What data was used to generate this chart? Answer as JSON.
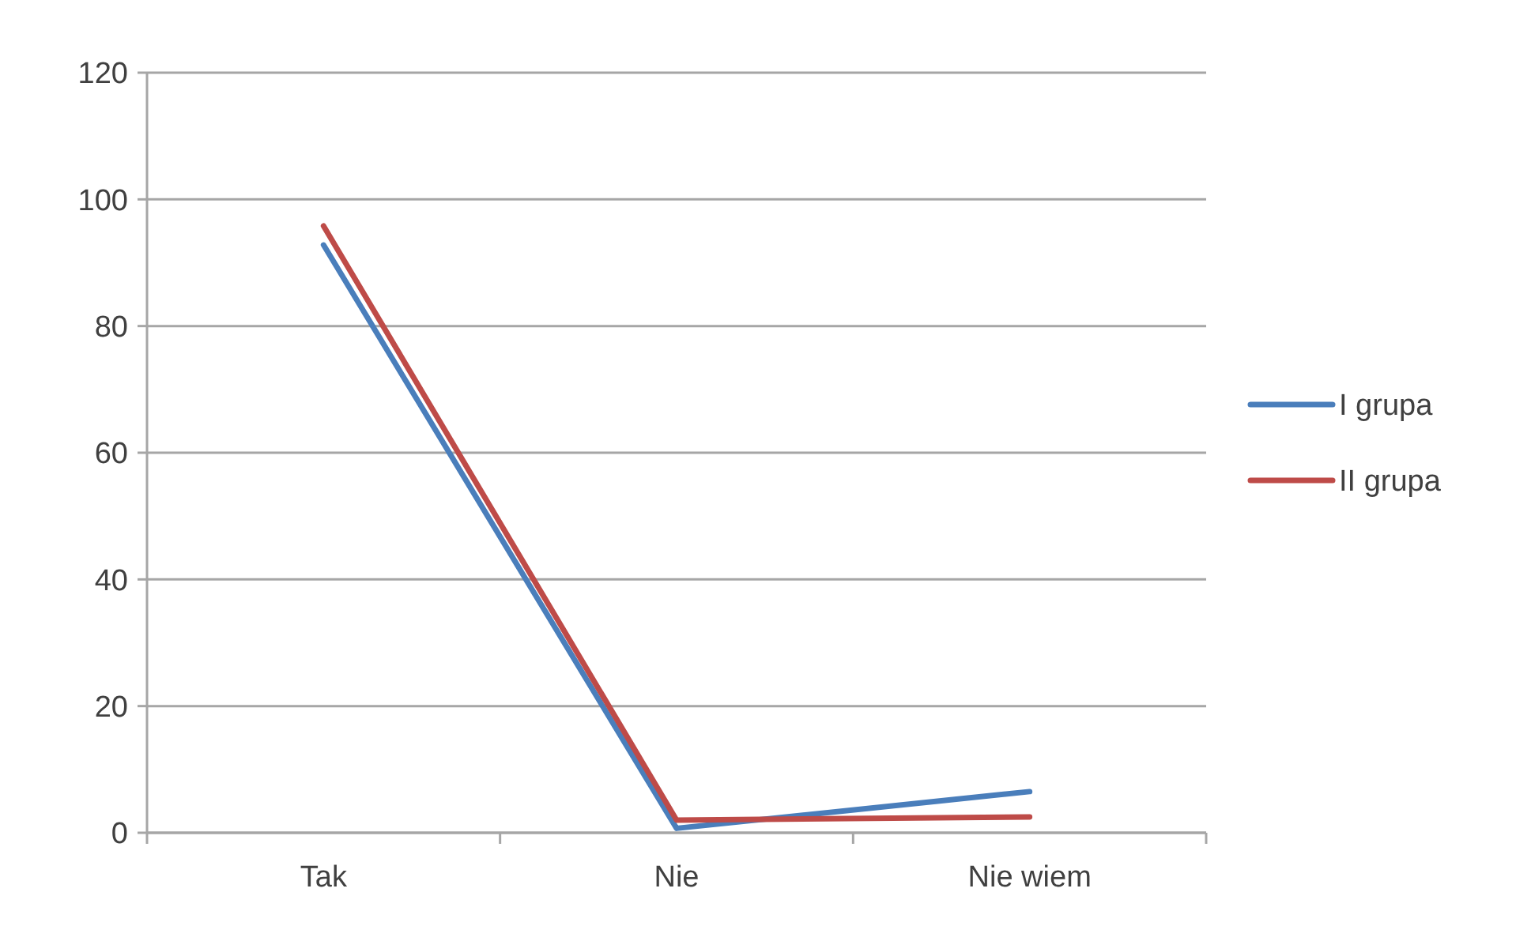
{
  "chart_data": {
    "type": "line",
    "categories": [
      "Tak",
      "Nie",
      "Nie wiem"
    ],
    "series": [
      {
        "name": "I grupa",
        "color": "#4a7ebb",
        "values": [
          92.8,
          0.7,
          6.5
        ]
      },
      {
        "name": "II grupa",
        "color": "#be4b48",
        "values": [
          95.8,
          2,
          2.5
        ]
      }
    ],
    "ylim": [
      0,
      120
    ],
    "yticks": [
      0,
      20,
      40,
      60,
      80,
      100,
      120
    ],
    "grid": "y",
    "legend": "right",
    "marker": "none",
    "line_style": "solid"
  }
}
